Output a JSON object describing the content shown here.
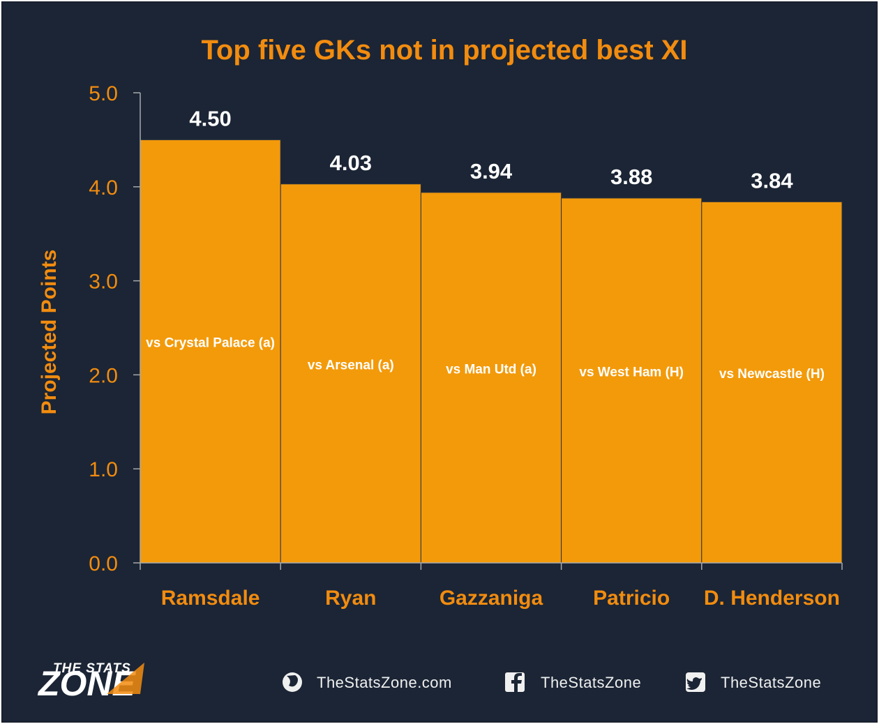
{
  "chart_data": {
    "type": "bar",
    "title": "Top five GKs not in projected best XI",
    "ylabel": "Projected Points",
    "xlabel": "",
    "ylim": [
      0,
      5
    ],
    "yticks": [
      "0.0",
      "1.0",
      "2.0",
      "3.0",
      "4.0",
      "5.0"
    ],
    "categories": [
      "Ramsdale",
      "Ryan",
      "Gazzaniga",
      "Patricio",
      "D. Henderson"
    ],
    "values": [
      4.5,
      4.03,
      3.94,
      3.88,
      3.84
    ],
    "value_labels": [
      "4.50",
      "4.03",
      "3.94",
      "3.88",
      "3.84"
    ],
    "fixtures": [
      "vs Crystal Palace (a)",
      "vs Arsenal (a)",
      "vs Man Utd (a)",
      "vs West Ham (H)",
      "vs Newcastle (H)"
    ],
    "bar_color": "#f39a0a",
    "grid": false,
    "legend": "none"
  },
  "footer": {
    "logo_top": "THE STATS",
    "logo_bottom": "ZONE",
    "website": "TheStatsZone.com",
    "facebook": "TheStatsZone",
    "twitter": "TheStatsZone",
    "website_icon": "globe-icon",
    "facebook_icon": "facebook-icon",
    "twitter_icon": "twitter-icon"
  },
  "colors": {
    "background": "#1b2535",
    "accent": "#f28c0f",
    "bar": "#f39a0a",
    "text_light": "#ffffff"
  }
}
